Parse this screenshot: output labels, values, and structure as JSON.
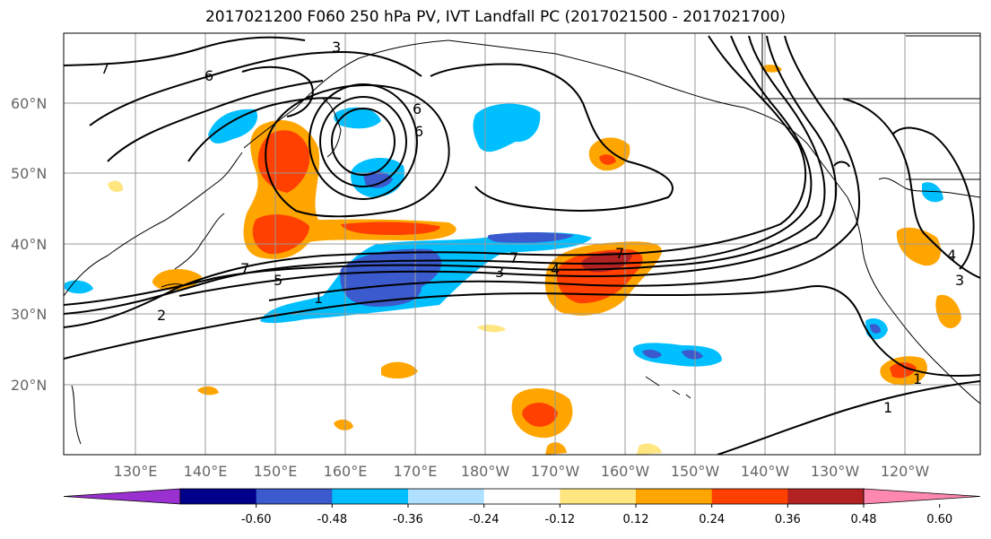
{
  "title": "2017021200 F060 250 hPa PV, IVT Landfall PC (2017021500 - 2017021700)",
  "lat_labels": [
    "60°N",
    "50°N",
    "40°N",
    "30°N",
    "20°N"
  ],
  "lon_labels": [
    "130°E",
    "140°E",
    "150°E",
    "160°E",
    "170°E",
    "180°W",
    "170°W",
    "160°W",
    "150°W",
    "140°W",
    "130°W",
    "120°W"
  ],
  "colorbar": {
    "colors": [
      "#9b30d0",
      "#00008b",
      "#3a5acd",
      "#00bfff",
      "#b0e0ff",
      "#ffffff",
      "#ffe680",
      "#ffa500",
      "#ff4000",
      "#b22222",
      "#ff88b0"
    ],
    "tick_labels": [
      "-0.60",
      "-0.48",
      "-0.36",
      "-0.24",
      "-0.12",
      "0.12",
      "0.24",
      "0.36",
      "0.48",
      "0.60"
    ]
  },
  "contour_labels": [
    "7",
    "6",
    "3",
    "7",
    "6",
    "6",
    "5",
    "3",
    "7",
    "4",
    "1",
    "2",
    "1",
    "1",
    "3",
    "4",
    "7"
  ]
}
